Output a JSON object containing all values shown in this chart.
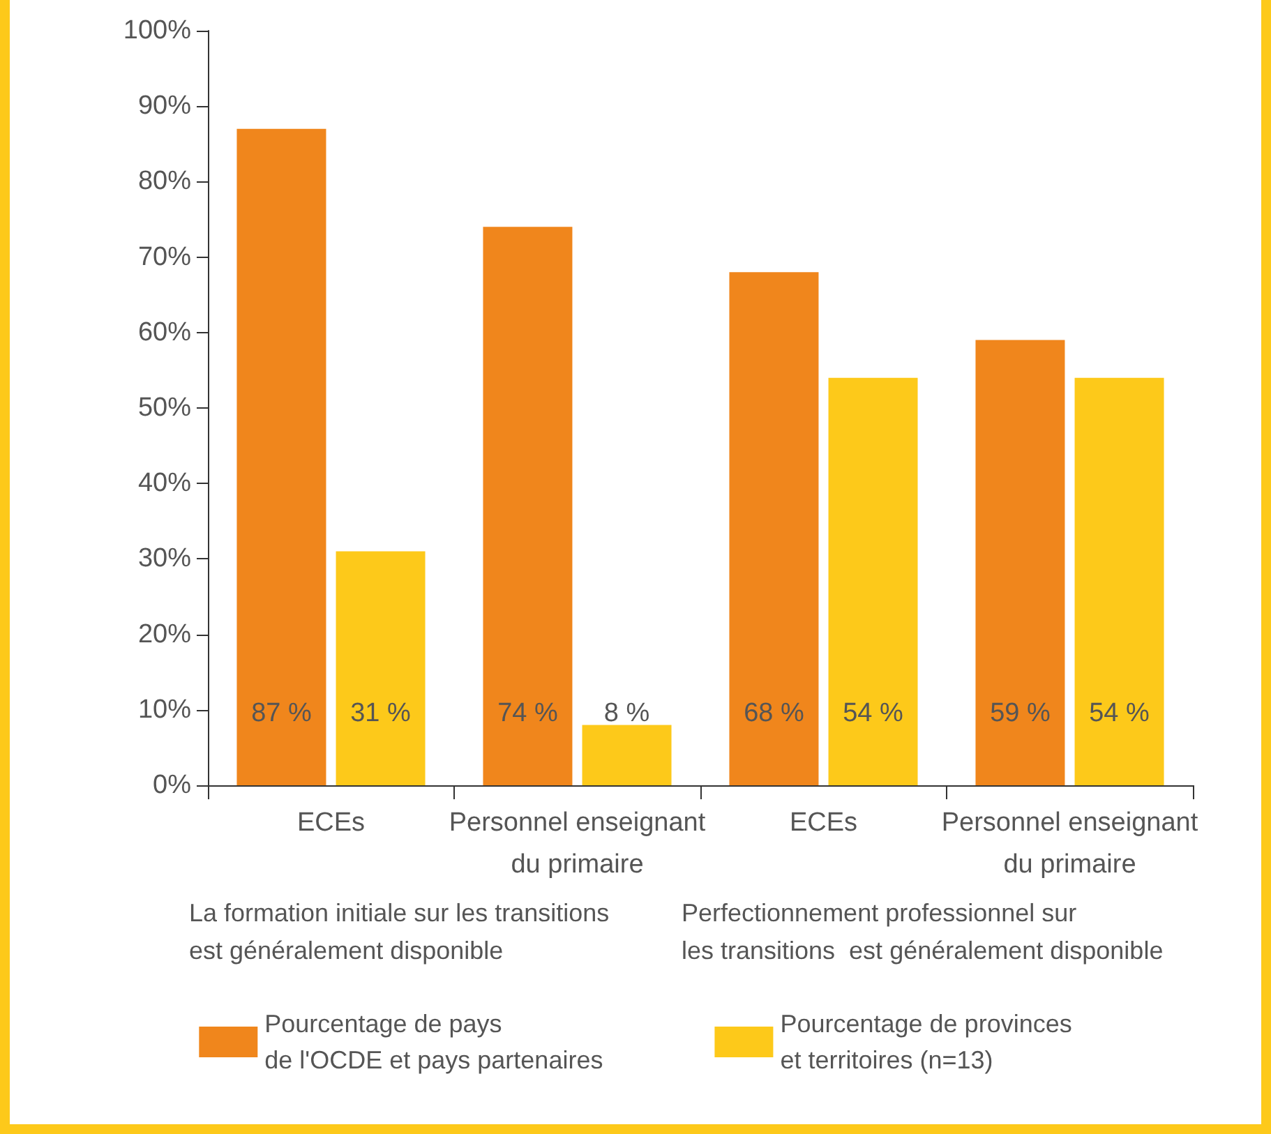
{
  "chart_data": {
    "type": "bar",
    "categories": [
      "ECEs",
      "Personnel enseignant\ndu primaire",
      "ECEs",
      "Personnel enseignant\ndu primaire"
    ],
    "series": [
      {
        "name": "Pourcentage de pays\nde l'OCDE et pays partenaires",
        "color": "#f0861c",
        "values": [
          87,
          74,
          68,
          59
        ],
        "value_labels": [
          "87 %",
          "74 %",
          "68 %",
          "59 %"
        ]
      },
      {
        "name": "Pourcentage de provinces\net territoires (n=13)",
        "color": "#fdc91a",
        "values": [
          31,
          8,
          54,
          54
        ],
        "value_labels": [
          "31 %",
          "8 %",
          "54 %",
          "54 %"
        ]
      }
    ],
    "ylim": [
      0,
      100
    ],
    "yticks": [
      {
        "value": 0,
        "label": "0%"
      },
      {
        "value": 10,
        "label": "10%"
      },
      {
        "value": 20,
        "label": "20%"
      },
      {
        "value": 30,
        "label": "30%"
      },
      {
        "value": 40,
        "label": "40%"
      },
      {
        "value": 50,
        "label": "50%"
      },
      {
        "value": 60,
        "label": "60%"
      },
      {
        "value": 70,
        "label": "70%"
      },
      {
        "value": 80,
        "label": "80%"
      },
      {
        "value": 90,
        "label": "90%"
      },
      {
        "value": 100,
        "label": "100%"
      }
    ],
    "annotations": [
      "La formation initiale sur les transitions\nest généralement disponible",
      "Perfectionnement professionnel sur\nles transitions  est généralement disponible"
    ],
    "grid": false,
    "legend": "bottom"
  }
}
